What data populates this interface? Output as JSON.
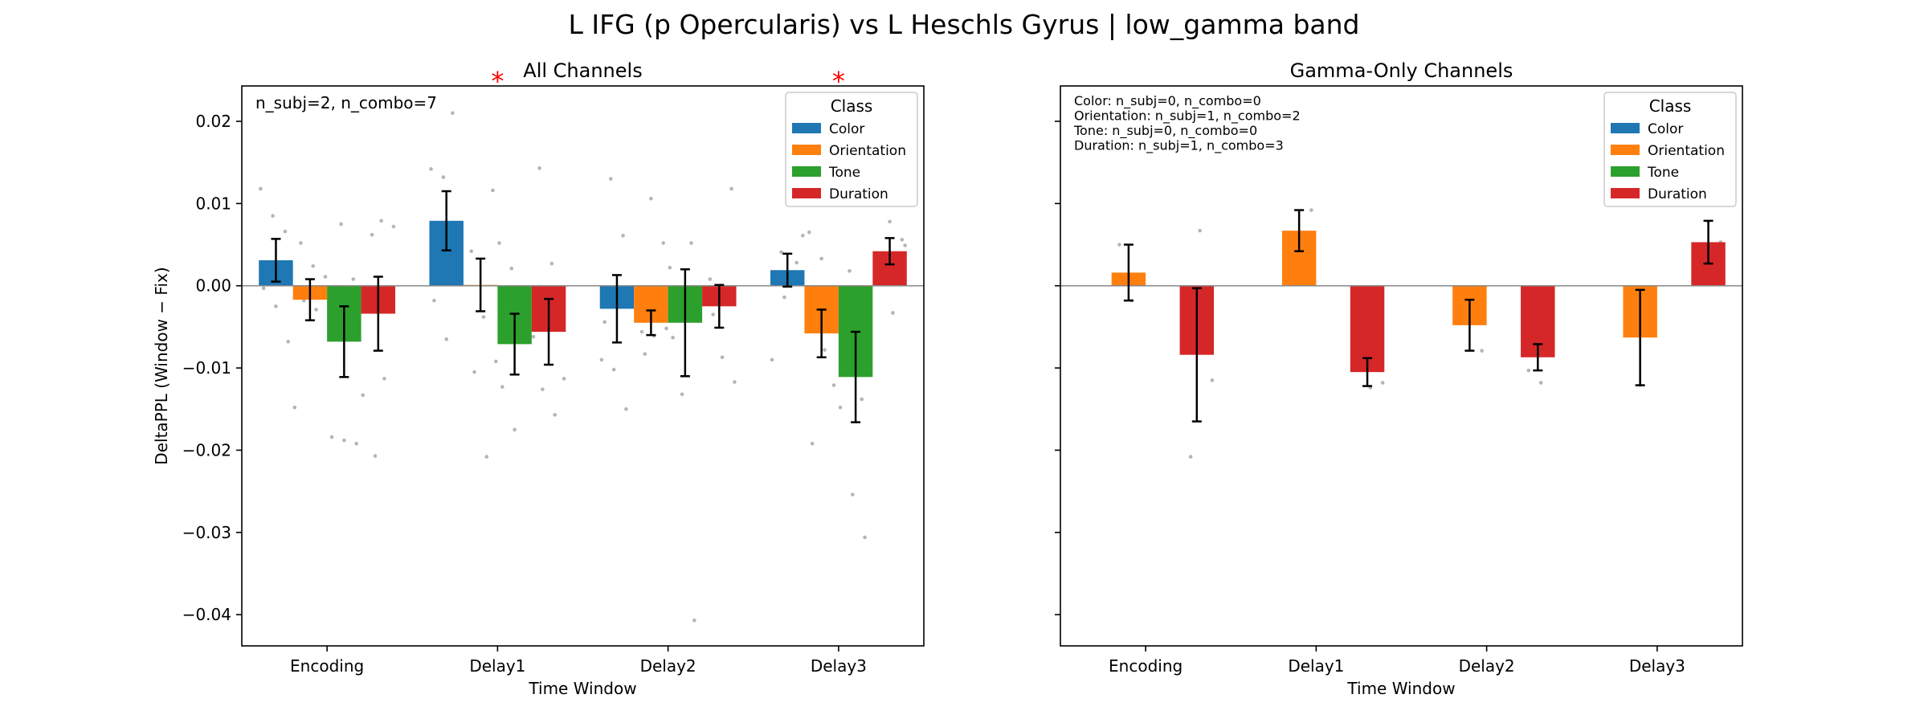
{
  "figure": {
    "suptitle": "L IFG (p Opercularis) vs L Heschls Gyrus  |  low_gamma band"
  },
  "chart_data": [
    {
      "type": "bar",
      "title": "All Channels",
      "xlabel": "Time Window",
      "ylabel": "DeltaPPL (Window − Fix)",
      "ylim": [
        -0.0438,
        0.0243
      ],
      "yticks": [
        0.02,
        0.01,
        0.0,
        -0.01,
        -0.02,
        -0.03,
        -0.04
      ],
      "ytick_labels": [
        "0.02",
        "0.01",
        "0.00",
        "−0.01",
        "−0.02",
        "−0.03",
        "−0.04"
      ],
      "show_ytick_labels": true,
      "categories": [
        "Encoding",
        "Delay1",
        "Delay2",
        "Delay3"
      ],
      "annotation": "n_subj=2, n_combo=7",
      "significance": [
        {
          "category": "Delay1",
          "label": "*"
        },
        {
          "category": "Delay3",
          "label": "*"
        }
      ],
      "legend": {
        "title": "Class",
        "position": "top-right"
      },
      "series": [
        {
          "name": "Color",
          "color": "#1f77b4",
          "values": [
            0.0031,
            0.0079,
            -0.0028,
            0.0019
          ],
          "err": [
            0.0026,
            0.0036,
            0.0041,
            0.002
          ]
        },
        {
          "name": "Orientation",
          "color": "#ff7f0e",
          "values": [
            -0.0017,
            0.0001,
            -0.0045,
            -0.0058
          ],
          "err": [
            0.0025,
            0.0032,
            0.0015,
            0.0029
          ]
        },
        {
          "name": "Tone",
          "color": "#2ca02c",
          "values": [
            -0.0068,
            -0.0071,
            -0.0045,
            -0.0111
          ],
          "err": [
            0.0043,
            0.0037,
            0.0065,
            0.0055
          ]
        },
        {
          "name": "Duration",
          "color": "#d62728",
          "values": [
            -0.0034,
            -0.0056,
            -0.0025,
            0.0042
          ],
          "err": [
            0.0045,
            0.004,
            0.0026,
            0.0016
          ]
        }
      ],
      "points": [
        [
          [
            0.0118,
            0.0085,
            0.0066,
            -0.0003,
            -0.0025,
            -0.0068
          ],
          [
            0.0052,
            0.0024,
            0.0011,
            -0.0018,
            -0.0029,
            -0.0148
          ],
          [
            0.0075,
            0.0008,
            -0.0184,
            -0.0188,
            -0.0192,
            -0.0061
          ],
          [
            0.0079,
            0.0072,
            0.0062,
            -0.0113,
            -0.0133,
            -0.0207
          ]
        ],
        [
          [
            0.021,
            0.0142,
            0.0132,
            0.0062,
            -0.0018,
            -0.0065
          ],
          [
            0.0116,
            0.0042,
            -0.0038,
            -0.0092,
            -0.0105,
            -0.0208
          ],
          [
            0.0052,
            0.0021,
            -0.0052,
            -0.0123,
            -0.0175,
            -0.0055
          ],
          [
            0.0143,
            0.0027,
            -0.0113,
            -0.0126,
            -0.0157,
            -0.0062
          ]
        ],
        [
          [
            0.013,
            0.0061,
            -0.009,
            -0.0102,
            -0.015,
            -0.0044
          ],
          [
            0.0106,
            0.0052,
            -0.0056,
            -0.0061,
            -0.0052,
            -0.0083
          ],
          [
            0.0052,
            0.0022,
            -0.0132,
            -0.0407,
            -0.0063,
            -0.0018
          ],
          [
            0.0118,
            0.0008,
            -0.0087,
            -0.0117,
            -0.0035,
            -0.0019
          ]
        ],
        [
          [
            0.0061,
            0.0041,
            0.001,
            -0.009,
            -0.0014,
            0.0028
          ],
          [
            0.0065,
            0.0033,
            -0.0121,
            -0.0192,
            -0.0078,
            -0.0024
          ],
          [
            0.0018,
            -0.0138,
            -0.0148,
            -0.0254,
            -0.0306,
            -0.0098
          ],
          [
            0.0078,
            0.0056,
            0.0011,
            -0.0033,
            0.0049,
            0.0024
          ]
        ]
      ]
    },
    {
      "type": "bar",
      "title": "Gamma-Only Channels",
      "xlabel": "Time Window",
      "ylabel": "",
      "ylim": [
        -0.0438,
        0.0243
      ],
      "yticks": [
        0.02,
        0.01,
        0.0,
        -0.01,
        -0.02,
        -0.03,
        -0.04
      ],
      "show_ytick_labels": false,
      "categories": [
        "Encoding",
        "Delay1",
        "Delay2",
        "Delay3"
      ],
      "annotation_lines": [
        "Color: n_subj=0, n_combo=0",
        "Orientation: n_subj=1, n_combo=2",
        "Tone: n_subj=0, n_combo=0",
        "Duration: n_subj=1, n_combo=3"
      ],
      "legend": {
        "title": "Class",
        "position": "top-right"
      },
      "series": [
        {
          "name": "Color",
          "color": "#1f77b4",
          "values": [
            null,
            null,
            null,
            null
          ],
          "err": [
            null,
            null,
            null,
            null
          ]
        },
        {
          "name": "Orientation",
          "color": "#ff7f0e",
          "values": [
            0.0016,
            0.0067,
            -0.0048,
            -0.0063
          ],
          "err": [
            0.0034,
            0.0025,
            0.0031,
            0.0058
          ]
        },
        {
          "name": "Tone",
          "color": "#2ca02c",
          "values": [
            null,
            null,
            null,
            null
          ],
          "err": [
            null,
            null,
            null,
            null
          ]
        },
        {
          "name": "Duration",
          "color": "#d62728",
          "values": [
            -0.0084,
            -0.0105,
            -0.0087,
            0.0053
          ],
          "err": [
            0.0081,
            0.0017,
            0.0016,
            0.0026
          ]
        }
      ],
      "points": [
        [
          [],
          [
            0.005,
            -0.0018
          ],
          [],
          [
            0.0067,
            -0.0115,
            -0.0208
          ]
        ],
        [
          [],
          [
            0.0092,
            0.0041
          ],
          [],
          [
            -0.0088,
            -0.0124,
            -0.0118
          ]
        ],
        [
          [],
          [
            -0.0018,
            -0.0079
          ],
          [],
          [
            -0.0068,
            -0.0103,
            -0.0118
          ]
        ],
        [
          [],
          [
            -0.0003,
            -0.0121
          ],
          [],
          [
            0.0078,
            0.0053,
            0.0027
          ]
        ]
      ]
    }
  ]
}
